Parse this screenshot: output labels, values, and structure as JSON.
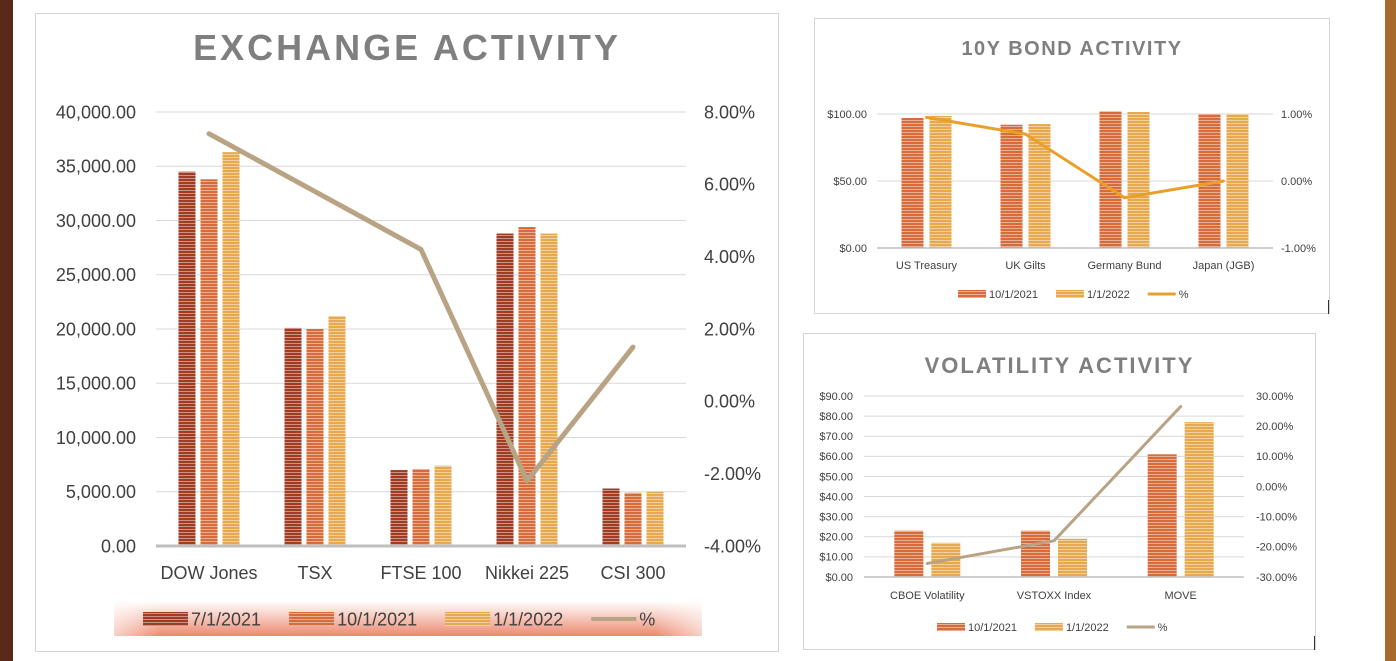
{
  "colors": {
    "series1": "#a03c22",
    "series2": "#d76b3a",
    "series3": "#e8a84e",
    "line_main": "#b8a484",
    "line_bond": "#e8a028",
    "title": "#7f7f7f",
    "axis_text": "#404040",
    "grid": "#d9d9d9"
  },
  "chart_data": [
    {
      "type": "bar",
      "title": "EXCHANGE ACTIVITY",
      "categories": [
        "DOW Jones",
        "TSX",
        "FTSE 100",
        "Nikkei 225",
        "CSI 300"
      ],
      "series": [
        {
          "name": "7/1/2021",
          "values": [
            34500,
            20100,
            7000,
            28800,
            5300
          ]
        },
        {
          "name": "10/1/2021",
          "values": [
            33800,
            20000,
            7100,
            29400,
            4900
          ]
        },
        {
          "name": "1/1/2022",
          "values": [
            36300,
            21200,
            7400,
            28800,
            5000
          ]
        }
      ],
      "line_series": {
        "name": "%",
        "values": [
          7.4,
          5.8,
          4.2,
          -2.2,
          1.5
        ]
      },
      "y_left": {
        "min": 0,
        "max": 40000,
        "step": 5000,
        "ticks": [
          "0.00",
          "5,000.00",
          "10,000.00",
          "15,000.00",
          "20,000.00",
          "25,000.00",
          "30,000.00",
          "35,000.00",
          "40,000.00"
        ]
      },
      "y_right": {
        "min": -4,
        "max": 8,
        "step": 2,
        "ticks": [
          "-4.00%",
          "-2.00%",
          "0.00%",
          "2.00%",
          "4.00%",
          "6.00%",
          "8.00%"
        ]
      },
      "legend": [
        "7/1/2021",
        "10/1/2021",
        "1/1/2022",
        "%"
      ],
      "legend_position": "bottom"
    },
    {
      "type": "bar",
      "title": "10Y BOND ACTIVITY",
      "categories": [
        "US Treasury",
        "UK Gilts",
        "Germany Bund",
        "Japan (JGB)"
      ],
      "series": [
        {
          "name": "10/1/2021",
          "values": [
            97,
            92,
            102,
            100
          ]
        },
        {
          "name": "1/1/2022",
          "values": [
            98.5,
            92.5,
            101.5,
            100
          ]
        }
      ],
      "line_series": {
        "name": "%",
        "values": [
          0.95,
          0.7,
          -0.25,
          0.0
        ]
      },
      "y_left": {
        "min": 0,
        "max": 100,
        "step": 50,
        "ticks": [
          "$0.00",
          "$50.00",
          "$100.00"
        ]
      },
      "y_right": {
        "min": -1,
        "max": 1,
        "step": 1,
        "ticks": [
          "-1.00%",
          "0.00%",
          "1.00%"
        ]
      },
      "legend": [
        "10/1/2021",
        "1/1/2022",
        "%"
      ],
      "legend_position": "bottom"
    },
    {
      "type": "bar",
      "title": "VOLATILITY ACTIVITY",
      "categories": [
        "CBOE Volatility",
        "VSTOXX Index",
        "MOVE"
      ],
      "series": [
        {
          "name": "10/1/2021",
          "values": [
            23,
            23,
            61
          ]
        },
        {
          "name": "1/1/2022",
          "values": [
            17,
            19,
            77
          ]
        }
      ],
      "line_series": {
        "name": "%",
        "values": [
          -25.5,
          -18,
          26.5
        ]
      },
      "y_left": {
        "min": 0,
        "max": 90,
        "step": 10,
        "ticks": [
          "$0.00",
          "$10.00",
          "$20.00",
          "$30.00",
          "$40.00",
          "$50.00",
          "$60.00",
          "$70.00",
          "$80.00",
          "$90.00"
        ]
      },
      "y_right": {
        "min": -30,
        "max": 30,
        "step": 10,
        "ticks": [
          "-30.00%",
          "-20.00%",
          "-10.00%",
          "0.00%",
          "10.00%",
          "20.00%",
          "30.00%"
        ]
      },
      "legend": [
        "10/1/2021",
        "1/1/2022",
        "%"
      ],
      "legend_position": "bottom"
    }
  ]
}
